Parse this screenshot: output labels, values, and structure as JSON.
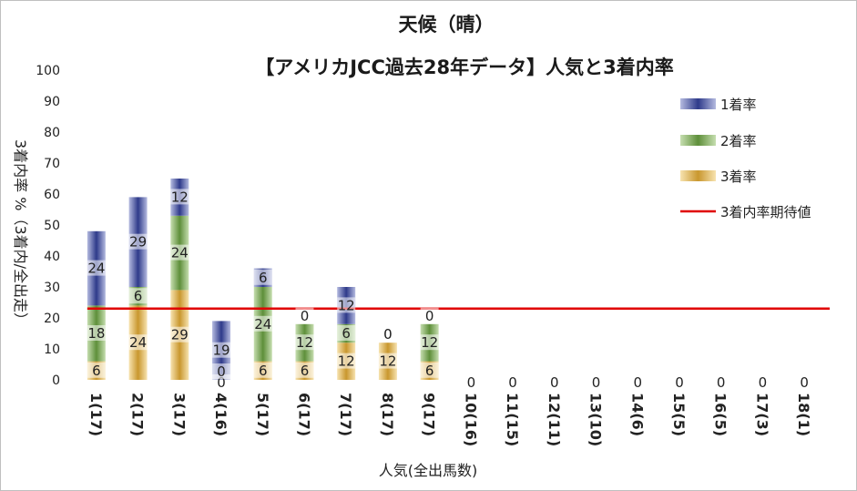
{
  "chart_data": {
    "type": "bar",
    "title": "天候（晴）",
    "subtitle": "【アメリカJCC過去28年データ】人気と3着内率",
    "xlabel": "人気(全出馬数)",
    "ylabel": "3着内率 %（3着内/全出走）",
    "ylim": [
      0,
      100
    ],
    "yticks": [
      0,
      10,
      20,
      30,
      40,
      50,
      60,
      70,
      80,
      90,
      100
    ],
    "legend_position": "right",
    "categories": [
      "1(17)",
      "2(17)",
      "3(17)",
      "4(16)",
      "5(17)",
      "6(17)",
      "7(17)",
      "8(17)",
      "9(17)",
      "10(16)",
      "11(15)",
      "12(11)",
      "13(10)",
      "14(6)",
      "15(5)",
      "16(5)",
      "17(3)",
      "18(1)"
    ],
    "series": [
      {
        "name": "3着率",
        "values": [
          6,
          24,
          29,
          0,
          6,
          6,
          12,
          12,
          6,
          0,
          0,
          0,
          0,
          0,
          0,
          0,
          0,
          0
        ],
        "color": "#c9a24a"
      },
      {
        "name": "2着率",
        "values": [
          18,
          6,
          24,
          0,
          24,
          12,
          6,
          0,
          12,
          0,
          0,
          0,
          0,
          0,
          0,
          0,
          0,
          0
        ],
        "color": "#5e8f3a"
      },
      {
        "name": "1着率",
        "values": [
          24,
          29,
          12,
          19,
          6,
          0,
          12,
          0,
          0,
          0,
          0,
          0,
          0,
          0,
          0,
          0,
          0,
          0
        ],
        "color": "#2e3a8a"
      }
    ],
    "reference_line": {
      "name": "3着内率期待値",
      "value": 23,
      "color": "#e00000"
    }
  }
}
